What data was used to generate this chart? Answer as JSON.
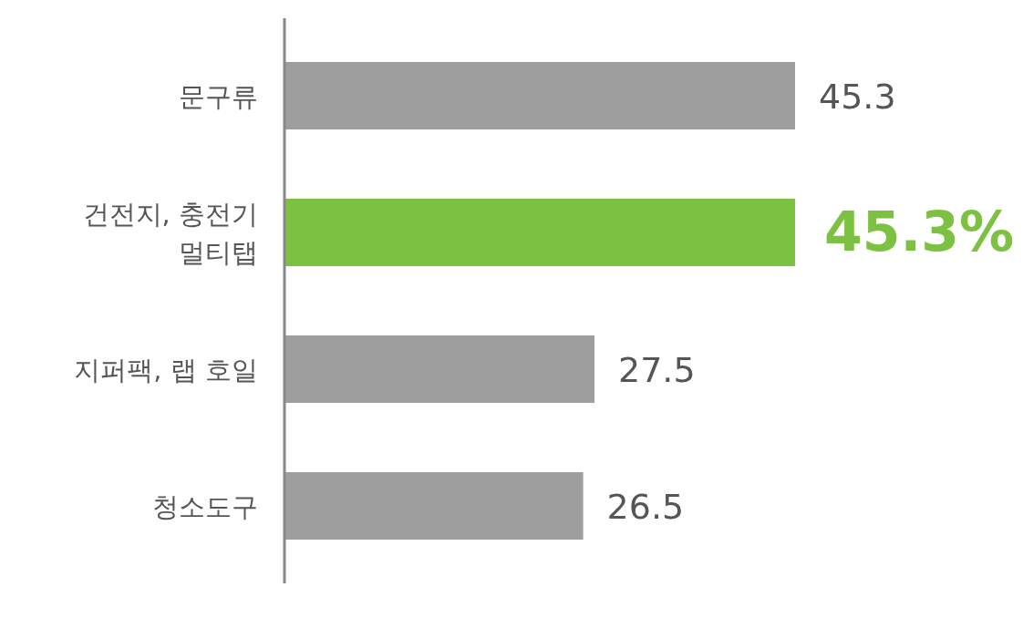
{
  "chart_data": {
    "type": "bar",
    "orientation": "horizontal",
    "categories": [
      "문구류",
      "건전지, 충전기\n멀티탭",
      "지퍼팩, 랩 호일",
      "청소도구"
    ],
    "values": [
      45.3,
      45.3,
      27.5,
      26.5
    ],
    "value_labels": [
      "45.3",
      "45.3%",
      "27.5",
      "26.5"
    ],
    "colors": [
      "#9e9e9e",
      "#7dc142",
      "#9e9e9e",
      "#9e9e9e"
    ]
  }
}
